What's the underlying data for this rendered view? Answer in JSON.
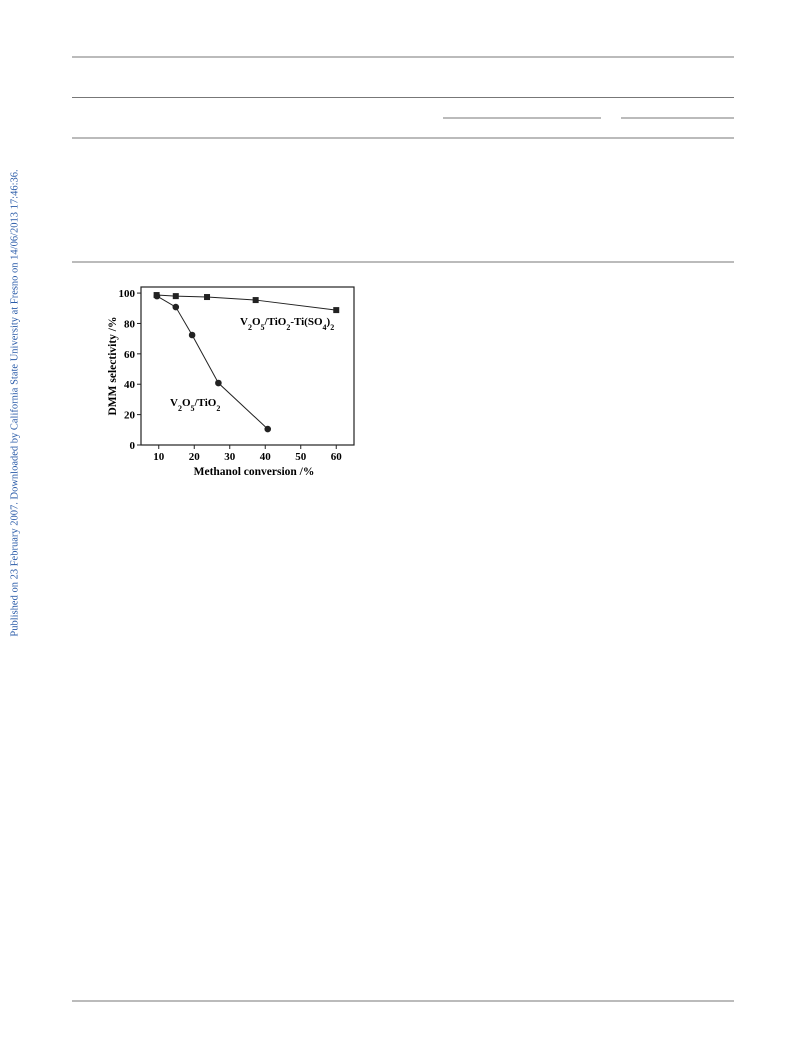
{
  "sidebar_text": "Published on 23 February 2007. Downloaded by California State University at Fresno on 14/06/2013 17:46:36.",
  "chart_data": {
    "type": "scatter-line",
    "xlabel": "Methanol conversion /%",
    "ylabel": "DMM selectivity /%",
    "xlim": [
      5,
      65
    ],
    "ylim": [
      0,
      104
    ],
    "xticks": [
      10,
      20,
      30,
      40,
      50,
      60
    ],
    "yticks": [
      0,
      20,
      40,
      60,
      80,
      100
    ],
    "series": [
      {
        "name": "V2O5/TiO2-Ti(SO4)2",
        "marker": "square",
        "color": "#222222",
        "x": [
          9.4,
          14.8,
          23.6,
          37.3,
          60
        ],
        "values": [
          98.7,
          98,
          97.4,
          95.4,
          88.8
        ]
      },
      {
        "name": "V2O5/TiO2",
        "marker": "circle",
        "color": "#222222",
        "x": [
          9.5,
          14.8,
          19.4,
          26.8,
          40.7
        ],
        "values": [
          98,
          90.8,
          72.4,
          40.8,
          10.5
        ]
      }
    ]
  }
}
